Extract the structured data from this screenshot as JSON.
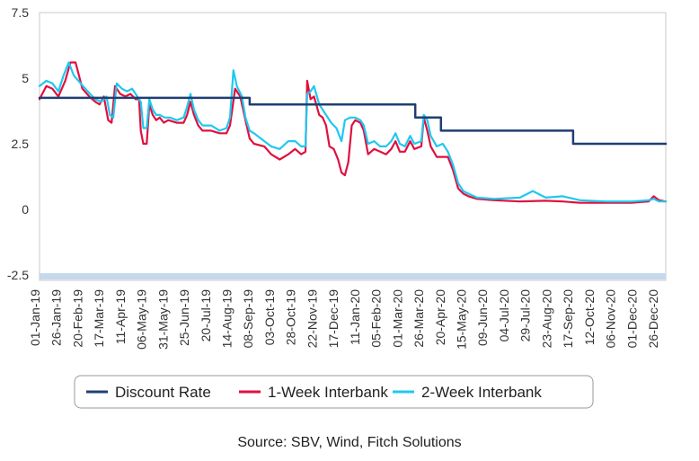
{
  "chart_data": {
    "type": "line",
    "xlabel": "",
    "ylabel": "",
    "ylim": [
      -2.5,
      7.5
    ],
    "yticks": [
      "7.5",
      "5",
      "2.5",
      "0",
      "-2.5"
    ],
    "ytick_values": [
      7.5,
      5,
      2.5,
      0,
      -2.5
    ],
    "x_tick_labels": [
      "01-Jan-19",
      "26-Jan-19",
      "20-Feb-19",
      "17-Mar-19",
      "11-Apr-19",
      "06-May-19",
      "31-May-19",
      "25-Jun-19",
      "20-Jul-19",
      "14-Aug-19",
      "08-Sep-19",
      "03-Oct-19",
      "28-Oct-19",
      "22-Nov-19",
      "17-Dec-19",
      "11-Jan-20",
      "05-Feb-20",
      "01-Mar-20",
      "26-Mar-20",
      "20-Apr-20",
      "15-May-20",
      "09-Jun-20",
      "04-Jul-20",
      "29-Jul-20",
      "23-Aug-20",
      "17-Sep-20",
      "12-Oct-20",
      "06-Nov-20",
      "01-Dec-20",
      "26-Dec-20"
    ],
    "x_units": "days since 01-Jan-19",
    "x_range": [
      0,
      730
    ],
    "grid": false,
    "legend_position": "bottom",
    "series": [
      {
        "name": "Discount Rate",
        "color": "#1f3f73",
        "points": [
          [
            0,
            4.25
          ],
          [
            245,
            4.25
          ],
          [
            245,
            4.0
          ],
          [
            438,
            4.0
          ],
          [
            438,
            3.5
          ],
          [
            468,
            3.5
          ],
          [
            468,
            3.0
          ],
          [
            622,
            3.0
          ],
          [
            622,
            2.5
          ],
          [
            730,
            2.5
          ]
        ]
      },
      {
        "name": "1-Week Interbank",
        "color": "#e0103f",
        "points": [
          [
            0,
            4.2
          ],
          [
            8,
            4.7
          ],
          [
            15,
            4.6
          ],
          [
            22,
            4.3
          ],
          [
            30,
            4.9
          ],
          [
            36,
            5.6
          ],
          [
            42,
            5.6
          ],
          [
            50,
            4.6
          ],
          [
            58,
            4.3
          ],
          [
            65,
            4.1
          ],
          [
            70,
            4.0
          ],
          [
            75,
            4.3
          ],
          [
            80,
            3.4
          ],
          [
            84,
            3.3
          ],
          [
            88,
            4.7
          ],
          [
            94,
            4.4
          ],
          [
            100,
            4.3
          ],
          [
            106,
            4.4
          ],
          [
            112,
            4.2
          ],
          [
            116,
            4.2
          ],
          [
            118,
            3.0
          ],
          [
            121,
            2.5
          ],
          [
            125,
            2.5
          ],
          [
            128,
            4.0
          ],
          [
            132,
            3.6
          ],
          [
            136,
            3.4
          ],
          [
            140,
            3.5
          ],
          [
            145,
            3.3
          ],
          [
            150,
            3.4
          ],
          [
            160,
            3.3
          ],
          [
            168,
            3.3
          ],
          [
            172,
            3.6
          ],
          [
            176,
            4.1
          ],
          [
            180,
            3.6
          ],
          [
            185,
            3.2
          ],
          [
            190,
            3.0
          ],
          [
            200,
            3.0
          ],
          [
            210,
            2.9
          ],
          [
            218,
            2.9
          ],
          [
            222,
            3.2
          ],
          [
            228,
            4.6
          ],
          [
            234,
            4.3
          ],
          [
            240,
            3.4
          ],
          [
            245,
            2.7
          ],
          [
            250,
            2.5
          ],
          [
            262,
            2.4
          ],
          [
            270,
            2.1
          ],
          [
            280,
            1.9
          ],
          [
            290,
            2.1
          ],
          [
            298,
            2.3
          ],
          [
            305,
            2.1
          ],
          [
            310,
            2.2
          ],
          [
            312,
            4.9
          ],
          [
            316,
            4.2
          ],
          [
            320,
            4.3
          ],
          [
            326,
            3.6
          ],
          [
            330,
            3.5
          ],
          [
            334,
            3.2
          ],
          [
            338,
            2.4
          ],
          [
            343,
            2.3
          ],
          [
            348,
            1.9
          ],
          [
            352,
            1.4
          ],
          [
            356,
            1.3
          ],
          [
            360,
            1.8
          ],
          [
            364,
            3.2
          ],
          [
            368,
            3.4
          ],
          [
            374,
            3.3
          ],
          [
            378,
            3.0
          ],
          [
            383,
            2.1
          ],
          [
            390,
            2.3
          ],
          [
            397,
            2.2
          ],
          [
            404,
            2.1
          ],
          [
            410,
            2.3
          ],
          [
            415,
            2.6
          ],
          [
            420,
            2.2
          ],
          [
            426,
            2.2
          ],
          [
            432,
            2.6
          ],
          [
            437,
            2.3
          ],
          [
            445,
            2.4
          ],
          [
            448,
            3.5
          ],
          [
            452,
            3.0
          ],
          [
            456,
            2.4
          ],
          [
            463,
            2.0
          ],
          [
            470,
            2.0
          ],
          [
            476,
            2.0
          ],
          [
            482,
            1.5
          ],
          [
            488,
            0.8
          ],
          [
            494,
            0.6
          ],
          [
            500,
            0.5
          ],
          [
            510,
            0.4
          ],
          [
            530,
            0.35
          ],
          [
            560,
            0.3
          ],
          [
            590,
            0.33
          ],
          [
            610,
            0.3
          ],
          [
            630,
            0.25
          ],
          [
            660,
            0.25
          ],
          [
            690,
            0.25
          ],
          [
            710,
            0.3
          ],
          [
            716,
            0.5
          ],
          [
            722,
            0.35
          ],
          [
            730,
            0.3
          ]
        ]
      },
      {
        "name": "2-Week Interbank",
        "color": "#1fc8f0",
        "points": [
          [
            0,
            4.7
          ],
          [
            8,
            4.9
          ],
          [
            15,
            4.8
          ],
          [
            22,
            4.5
          ],
          [
            28,
            5.1
          ],
          [
            34,
            5.6
          ],
          [
            40,
            5.1
          ],
          [
            48,
            4.8
          ],
          [
            56,
            4.5
          ],
          [
            65,
            4.2
          ],
          [
            72,
            4.1
          ],
          [
            78,
            4.3
          ],
          [
            82,
            3.6
          ],
          [
            86,
            3.5
          ],
          [
            90,
            4.8
          ],
          [
            96,
            4.6
          ],
          [
            102,
            4.5
          ],
          [
            108,
            4.6
          ],
          [
            114,
            4.3
          ],
          [
            118,
            4.1
          ],
          [
            121,
            3.1
          ],
          [
            125,
            3.1
          ],
          [
            128,
            4.2
          ],
          [
            132,
            3.8
          ],
          [
            136,
            3.6
          ],
          [
            140,
            3.6
          ],
          [
            146,
            3.5
          ],
          [
            152,
            3.5
          ],
          [
            160,
            3.4
          ],
          [
            168,
            3.5
          ],
          [
            172,
            3.9
          ],
          [
            176,
            4.4
          ],
          [
            180,
            3.8
          ],
          [
            185,
            3.4
          ],
          [
            190,
            3.2
          ],
          [
            200,
            3.2
          ],
          [
            210,
            3.0
          ],
          [
            218,
            3.1
          ],
          [
            222,
            3.5
          ],
          [
            226,
            5.3
          ],
          [
            230,
            4.7
          ],
          [
            236,
            4.3
          ],
          [
            240,
            3.5
          ],
          [
            245,
            3.0
          ],
          [
            250,
            2.9
          ],
          [
            262,
            2.6
          ],
          [
            270,
            2.4
          ],
          [
            280,
            2.3
          ],
          [
            290,
            2.6
          ],
          [
            298,
            2.6
          ],
          [
            305,
            2.4
          ],
          [
            310,
            2.4
          ],
          [
            312,
            4.4
          ],
          [
            316,
            4.5
          ],
          [
            320,
            4.7
          ],
          [
            326,
            4.0
          ],
          [
            330,
            3.8
          ],
          [
            334,
            3.6
          ],
          [
            340,
            3.3
          ],
          [
            346,
            3.1
          ],
          [
            352,
            2.6
          ],
          [
            356,
            3.4
          ],
          [
            362,
            3.5
          ],
          [
            368,
            3.5
          ],
          [
            374,
            3.4
          ],
          [
            378,
            3.2
          ],
          [
            383,
            2.5
          ],
          [
            390,
            2.6
          ],
          [
            397,
            2.4
          ],
          [
            404,
            2.4
          ],
          [
            410,
            2.6
          ],
          [
            415,
            2.9
          ],
          [
            420,
            2.5
          ],
          [
            426,
            2.4
          ],
          [
            432,
            2.8
          ],
          [
            437,
            2.5
          ],
          [
            445,
            2.6
          ],
          [
            448,
            3.6
          ],
          [
            452,
            3.4
          ],
          [
            456,
            2.8
          ],
          [
            463,
            2.4
          ],
          [
            470,
            2.5
          ],
          [
            476,
            2.2
          ],
          [
            482,
            1.7
          ],
          [
            488,
            1.0
          ],
          [
            494,
            0.7
          ],
          [
            500,
            0.6
          ],
          [
            510,
            0.45
          ],
          [
            530,
            0.4
          ],
          [
            560,
            0.45
          ],
          [
            575,
            0.7
          ],
          [
            590,
            0.45
          ],
          [
            610,
            0.5
          ],
          [
            630,
            0.35
          ],
          [
            660,
            0.3
          ],
          [
            690,
            0.3
          ],
          [
            710,
            0.35
          ],
          [
            716,
            0.4
          ],
          [
            722,
            0.3
          ],
          [
            730,
            0.3
          ]
        ]
      }
    ],
    "source": "Source: SBV, Wind, Fitch Solutions"
  }
}
